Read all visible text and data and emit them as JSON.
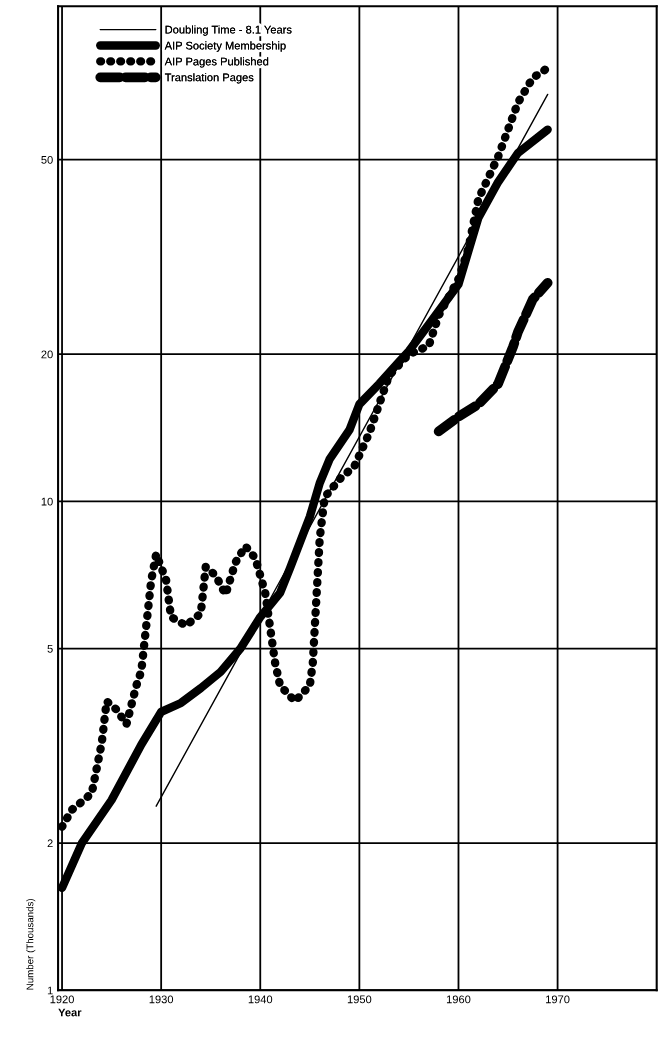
{
  "chart_data": {
    "type": "line",
    "xlabel": "Year",
    "ylabel": "Number (Thousands)",
    "log": "y",
    "grid": true,
    "legend": "top left",
    "xlim": [
      1919.6,
      1980
    ],
    "xticks": [
      1920,
      1930,
      1940,
      1950,
      1960,
      1970
    ],
    "ylim": [
      1,
      103
    ],
    "yticks": [
      1,
      2,
      5,
      10,
      20,
      50
    ],
    "series": [
      {
        "name": "Doubling Time - 8.1 Years",
        "color": "#000000",
        "line_style": "solid",
        "x": [
          1929.5,
          1969
        ],
        "values": [
          2.38,
          68
        ]
      },
      {
        "name": "AIP Society Membership",
        "color": "#000000",
        "line_style": "solid",
        "x": [
          1920,
          1922,
          1925,
          1928,
          1930,
          1932,
          1934,
          1936,
          1938,
          1940,
          1942,
          1943,
          1945,
          1946,
          1947,
          1949,
          1950,
          1952,
          1954,
          1955,
          1957,
          1960,
          1962,
          1964,
          1966,
          1969
        ],
        "values": [
          1.62,
          2.0,
          2.45,
          3.18,
          3.71,
          3.87,
          4.15,
          4.48,
          5.0,
          5.8,
          6.5,
          7.3,
          9.3,
          10.9,
          12.2,
          14.0,
          15.8,
          17.4,
          19.3,
          20.3,
          23,
          27.8,
          38,
          45,
          51.6,
          57.6
        ]
      },
      {
        "name": "AIP Pages Published",
        "color": "#000000",
        "line_style": "dotted",
        "x": [
          1920,
          1921,
          1922,
          1923,
          1924,
          1924.5,
          1925.5,
          1926.5,
          1927.5,
          1928,
          1929,
          1929.5,
          1930.5,
          1931,
          1932.5,
          1934,
          1934.5,
          1935.5,
          1936.5,
          1937.5,
          1938.5,
          1939.5,
          1940.5,
          1941.5,
          1942,
          1943.5,
          1945,
          1945.3,
          1946,
          1946.5,
          1948,
          1949.5,
          1951,
          1953,
          1955,
          1957,
          1958,
          1960,
          1961,
          1962,
          1964,
          1966,
          1967.5,
          1969
        ],
        "values": [
          2.16,
          2.34,
          2.43,
          2.53,
          3.2,
          3.9,
          3.75,
          3.5,
          4.2,
          4.5,
          6.9,
          7.8,
          6.9,
          5.8,
          5.57,
          5.9,
          7.35,
          7.05,
          6.45,
          7.5,
          8.1,
          7.65,
          6.5,
          4.67,
          4.2,
          3.9,
          4.2,
          4.67,
          8.4,
          10.2,
          11.1,
          11.8,
          13.8,
          18.1,
          20.0,
          20.8,
          24,
          28.5,
          32.9,
          41.5,
          50.7,
          65.4,
          73.5,
          77
        ]
      },
      {
        "name": "Translation Pages",
        "color": "#000000",
        "line_style": "dashed",
        "x": [
          1958,
          1960,
          1962,
          1964,
          1965.5,
          1966,
          1967.5,
          1969
        ],
        "values": [
          13.9,
          14.9,
          15.8,
          17.4,
          20.7,
          22.2,
          25.9,
          28
        ]
      }
    ]
  }
}
